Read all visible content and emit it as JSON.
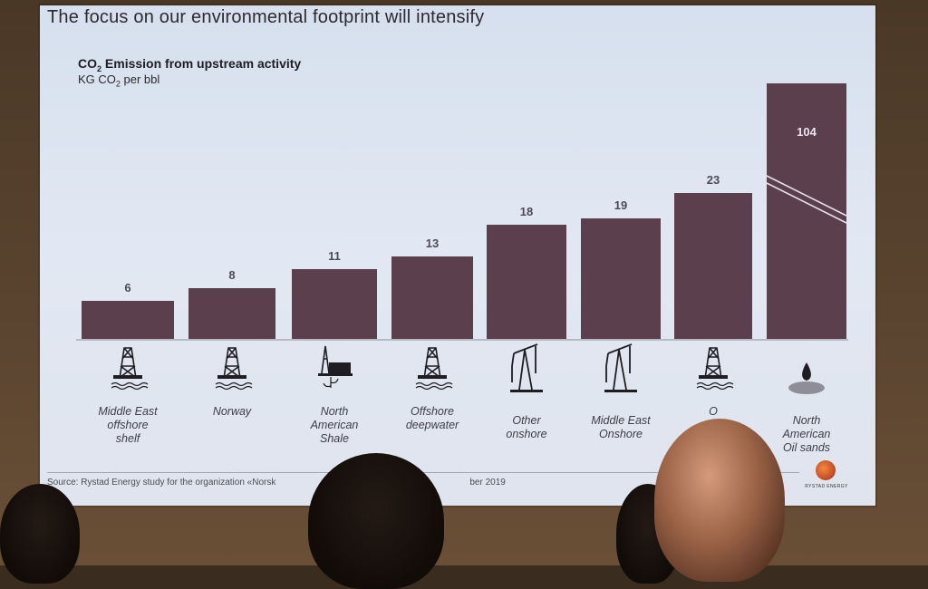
{
  "slide": {
    "title": "The focus on our environmental footprint will intensify",
    "chart_title_main": "CO",
    "chart_title_sub": "2",
    "chart_title_rest": " Emission from upstream activity",
    "unit_main": "KG CO",
    "unit_sub": "2",
    "unit_rest": " per bbl",
    "source": "Source: Rystad Energy study for the organization «Norsk",
    "source_tail": "ber 2019",
    "logo_text": "RYSTAD ENERGY"
  },
  "chart_data": {
    "type": "bar",
    "title": "CO2 Emission from upstream activity",
    "ylabel": "KG CO2 per bbl",
    "categories": [
      "Middle East offshore shelf",
      "Norway",
      "North American Shale",
      "Offshore deepwater",
      "Other onshore",
      "Middle East Onshore",
      "O",
      "North American Oil sands"
    ],
    "category_lines": [
      [
        "Middle East",
        "offshore",
        "shelf"
      ],
      [
        "Norway"
      ],
      [
        "North",
        "American",
        "Shale"
      ],
      [
        "Offshore",
        "deepwater"
      ],
      [
        "Other",
        "onshore"
      ],
      [
        "Middle East",
        "Onshore"
      ],
      [
        "O"
      ],
      [
        "North",
        "American",
        "Oil sands"
      ]
    ],
    "values": [
      6,
      8,
      11,
      13,
      18,
      19,
      23,
      104
    ],
    "value_labels": [
      "6",
      "8",
      "11",
      "13",
      "18",
      "19",
      "23",
      "104"
    ],
    "icons": [
      "offshore-rig-icon",
      "offshore-rig-icon",
      "shale-facility-icon",
      "offshore-rig-icon",
      "pumpjack-icon",
      "pumpjack-icon",
      "offshore-rig-icon",
      "oil-sand-drop-icon"
    ],
    "axis_break": true,
    "bar_color": "#5b3f4d"
  }
}
